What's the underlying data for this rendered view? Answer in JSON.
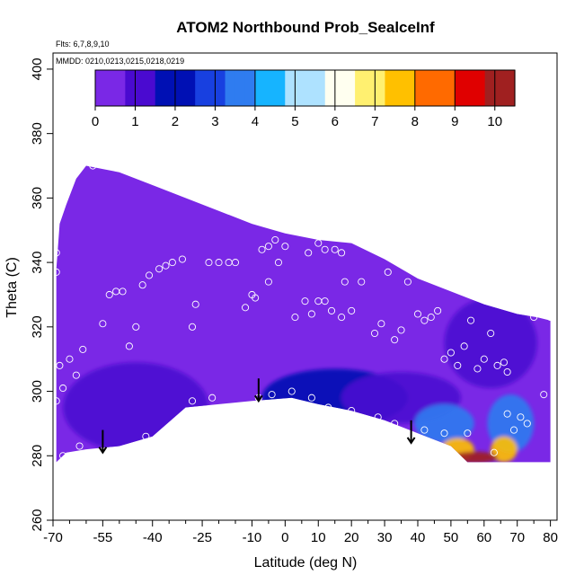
{
  "chart_data": {
    "type": "heatmap",
    "title": "ATOM2 Northbound Prob_SealceInf",
    "subtitle": "Flts: 6,7,8,9,10",
    "note": "MMDD: 0210,0213,0215,0218,0219",
    "xlabel": "Latitude (deg N)",
    "ylabel": "Theta (C)",
    "xlim": [
      -70,
      82
    ],
    "ylim": [
      260,
      405
    ],
    "x_ticks": [
      -70,
      -55,
      -40,
      -25,
      -10,
      0,
      10,
      20,
      30,
      40,
      50,
      60,
      70,
      80
    ],
    "x_minor_ticks": [
      -65,
      -60,
      -50,
      -45,
      -35,
      -30,
      -20,
      -15,
      -5,
      5,
      15,
      25,
      35,
      45,
      55,
      65,
      75
    ],
    "y_ticks": [
      260,
      280,
      300,
      320,
      340,
      360,
      380,
      400
    ],
    "colorbar": {
      "min": 0,
      "max": 10.5,
      "ticks": [
        0,
        1,
        2,
        3,
        4,
        5,
        6,
        7,
        8,
        9,
        10
      ],
      "colors": [
        "#7a28e6",
        "#4a0ad0",
        "#0010b4",
        "#1840e0",
        "#2f7cf0",
        "#16b4ff",
        "#aee2ff",
        "#fffff0",
        "#fff070",
        "#ffc000",
        "#ff6a00",
        "#e00000",
        "#a02020"
      ]
    },
    "background_value": 0.2,
    "features": [
      {
        "lat": 15,
        "theta": 298,
        "slat": 22,
        "stheta": 9,
        "value": 1.8
      },
      {
        "lat": 35,
        "theta": 298,
        "slat": 18,
        "stheta": 8,
        "value": 1.6
      },
      {
        "lat": -45,
        "theta": 295,
        "slat": 22,
        "stheta": 14,
        "value": 1.4
      },
      {
        "lat": 62,
        "theta": 315,
        "slat": 14,
        "stheta": 14,
        "value": 1.0
      },
      {
        "lat": 48,
        "theta": 290,
        "slat": 9,
        "stheta": 6,
        "value": 3.8
      },
      {
        "lat": 68,
        "theta": 290,
        "slat": 7,
        "stheta": 9,
        "value": 4.0
      },
      {
        "lat": 52,
        "theta": 282,
        "slat": 5,
        "stheta": 3.5,
        "value": 7.5
      },
      {
        "lat": 66,
        "theta": 282,
        "slat": 4,
        "stheta": 4,
        "value": 8.0
      },
      {
        "lat": 57,
        "theta": 279.5,
        "slat": 7,
        "stheta": 1.8,
        "value": 10.5
      }
    ],
    "data_top": [
      [
        -69,
        338
      ],
      [
        -68,
        352
      ],
      [
        -66,
        358
      ],
      [
        -63,
        366
      ],
      [
        -60,
        370
      ],
      [
        -55,
        369
      ],
      [
        -50,
        368
      ],
      [
        -40,
        364
      ],
      [
        -30,
        360
      ],
      [
        -20,
        356
      ],
      [
        -10,
        352
      ],
      [
        0,
        349
      ],
      [
        10,
        347
      ],
      [
        20,
        346
      ],
      [
        30,
        341
      ],
      [
        40,
        335
      ],
      [
        50,
        331
      ],
      [
        60,
        327
      ],
      [
        70,
        324
      ],
      [
        76,
        323
      ],
      [
        80,
        322
      ]
    ],
    "data_bottom": [
      [
        80,
        278
      ],
      [
        55,
        278
      ],
      [
        50,
        283
      ],
      [
        40,
        287
      ],
      [
        30,
        291
      ],
      [
        20,
        294
      ],
      [
        10,
        296
      ],
      [
        2,
        298
      ],
      [
        -10,
        297
      ],
      [
        -20,
        296
      ],
      [
        -30,
        295
      ],
      [
        -40,
        286
      ],
      [
        -50,
        283
      ],
      [
        -60,
        282
      ],
      [
        -66,
        281
      ],
      [
        -69,
        278
      ]
    ],
    "points": [
      [
        -69,
        337
      ],
      [
        -69,
        343
      ],
      [
        -67,
        359
      ],
      [
        -63,
        369
      ],
      [
        -58,
        370
      ],
      [
        -68,
        308
      ],
      [
        -69,
        297
      ],
      [
        -67,
        301
      ],
      [
        -65,
        310
      ],
      [
        -61,
        313
      ],
      [
        -63,
        305
      ],
      [
        -55,
        321
      ],
      [
        -53,
        330
      ],
      [
        -51,
        331
      ],
      [
        -49,
        331
      ],
      [
        -47,
        314
      ],
      [
        -45,
        320
      ],
      [
        -43,
        333
      ],
      [
        -41,
        336
      ],
      [
        -38,
        338
      ],
      [
        -36,
        339
      ],
      [
        -34,
        340
      ],
      [
        -31,
        341
      ],
      [
        -27,
        327
      ],
      [
        -23,
        340
      ],
      [
        -20,
        340
      ],
      [
        -17,
        340
      ],
      [
        -15,
        340
      ],
      [
        -12,
        326
      ],
      [
        -10,
        330
      ],
      [
        -7,
        344
      ],
      [
        -5,
        345
      ],
      [
        -3,
        347
      ],
      [
        -9,
        329
      ],
      [
        -5,
        334
      ],
      [
        -2,
        340
      ],
      [
        0,
        345
      ],
      [
        -28,
        320
      ],
      [
        3,
        323
      ],
      [
        6,
        328
      ],
      [
        8,
        324
      ],
      [
        10,
        328
      ],
      [
        7,
        343
      ],
      [
        10,
        346
      ],
      [
        12,
        344
      ],
      [
        15,
        344
      ],
      [
        17,
        343
      ],
      [
        18,
        334
      ],
      [
        12,
        328
      ],
      [
        14,
        325
      ],
      [
        17,
        323
      ],
      [
        20,
        325
      ],
      [
        23,
        334
      ],
      [
        25,
        347
      ],
      [
        27,
        318
      ],
      [
        29,
        321
      ],
      [
        31,
        337
      ],
      [
        33,
        316
      ],
      [
        35,
        319
      ],
      [
        37,
        334
      ],
      [
        40,
        324
      ],
      [
        42,
        322
      ],
      [
        44,
        323
      ],
      [
        46,
        325
      ],
      [
        48,
        310
      ],
      [
        50,
        312
      ],
      [
        52,
        308
      ],
      [
        54,
        314
      ],
      [
        56,
        322
      ],
      [
        58,
        307
      ],
      [
        60,
        310
      ],
      [
        62,
        318
      ],
      [
        64,
        308
      ],
      [
        66,
        309
      ],
      [
        67,
        306
      ],
      [
        67,
        293
      ],
      [
        71,
        292
      ],
      [
        73,
        290
      ],
      [
        75,
        323
      ],
      [
        78,
        299
      ],
      [
        80,
        323
      ],
      [
        -67,
        280
      ],
      [
        -62,
        283
      ],
      [
        -42,
        286
      ],
      [
        -28,
        297
      ],
      [
        -22,
        298
      ],
      [
        -8,
        298
      ],
      [
        -4,
        299
      ],
      [
        2,
        300
      ],
      [
        8,
        298
      ],
      [
        13,
        295
      ],
      [
        20,
        294
      ],
      [
        28,
        292
      ],
      [
        33,
        290
      ],
      [
        42,
        288
      ],
      [
        48,
        287
      ],
      [
        55,
        287
      ],
      [
        63,
        281
      ],
      [
        69,
        288
      ]
    ],
    "arrows": [
      {
        "lat": -55,
        "theta_top": 288,
        "theta_tip": 281
      },
      {
        "lat": -8,
        "theta_top": 304,
        "theta_tip": 297
      },
      {
        "lat": 38,
        "theta_top": 291,
        "theta_tip": 284
      }
    ]
  }
}
